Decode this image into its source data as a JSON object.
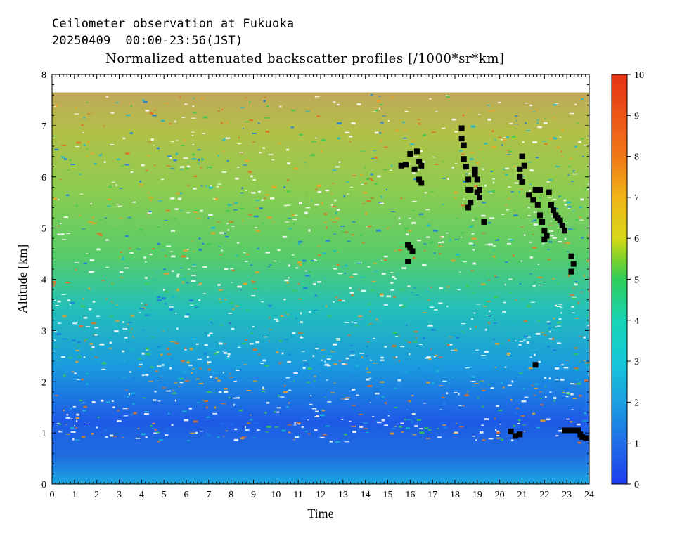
{
  "header": {
    "line1": "Ceilometer observation at Fukuoka",
    "line2": "20250409  00:00-23:56(JST)",
    "line3": "Normalized attenuated backscatter profiles [/1000*sr*km]"
  },
  "chart_data": {
    "type": "heatmap",
    "title": "Normalized attenuated backscatter profiles [/1000*sr*km]",
    "xlabel": "Time",
    "ylabel": "Altitude [km]",
    "xlim": [
      0,
      24
    ],
    "ylim": [
      0,
      8
    ],
    "x_ticks": [
      "0",
      "1",
      "2",
      "3",
      "4",
      "5",
      "6",
      "7",
      "8",
      "9",
      "10",
      "11",
      "12",
      "13",
      "14",
      "15",
      "16",
      "17",
      "18",
      "19",
      "20",
      "21",
      "22",
      "23",
      "24"
    ],
    "y_ticks": [
      "0",
      "1",
      "2",
      "3",
      "4",
      "5",
      "6",
      "7",
      "8"
    ],
    "data_top_altitude_km": 7.65,
    "colorbar": {
      "range": [
        0,
        10
      ],
      "ticks": [
        "0",
        "1",
        "2",
        "3",
        "4",
        "5",
        "6",
        "7",
        "8",
        "9",
        "10"
      ],
      "colors": [
        "#1e3cf0",
        "#1f6ee6",
        "#1aa0e0",
        "#16c8d8",
        "#18d4b4",
        "#2ecc5a",
        "#7fd42a",
        "#d8d818",
        "#f0b418",
        "#f07818",
        "#e63214"
      ]
    },
    "cloud_base_points": [
      [
        15.6,
        6.22
      ],
      [
        15.8,
        6.24
      ],
      [
        16.0,
        6.45
      ],
      [
        16.3,
        6.5
      ],
      [
        16.2,
        6.15
      ],
      [
        16.4,
        6.3
      ],
      [
        16.5,
        6.22
      ],
      [
        16.4,
        5.95
      ],
      [
        16.5,
        5.88
      ],
      [
        15.9,
        4.67
      ],
      [
        16.0,
        4.62
      ],
      [
        16.1,
        4.55
      ],
      [
        15.9,
        4.35
      ],
      [
        18.3,
        6.95
      ],
      [
        18.3,
        6.75
      ],
      [
        18.4,
        6.62
      ],
      [
        18.4,
        6.35
      ],
      [
        18.5,
        6.2
      ],
      [
        18.6,
        5.95
      ],
      [
        18.6,
        5.75
      ],
      [
        18.7,
        5.75
      ],
      [
        18.7,
        5.5
      ],
      [
        18.6,
        5.4
      ],
      [
        18.9,
        6.15
      ],
      [
        18.9,
        6.05
      ],
      [
        19.0,
        5.95
      ],
      [
        19.1,
        5.75
      ],
      [
        19.0,
        5.7
      ],
      [
        19.1,
        5.6
      ],
      [
        19.3,
        5.12
      ],
      [
        20.9,
        6.15
      ],
      [
        21.0,
        6.4
      ],
      [
        21.1,
        6.22
      ],
      [
        20.9,
        6.0
      ],
      [
        21.0,
        5.9
      ],
      [
        21.3,
        5.65
      ],
      [
        21.5,
        5.55
      ],
      [
        21.6,
        5.75
      ],
      [
        21.8,
        5.75
      ],
      [
        21.7,
        5.45
      ],
      [
        21.8,
        5.25
      ],
      [
        21.9,
        5.12
      ],
      [
        22.0,
        4.95
      ],
      [
        22.0,
        4.78
      ],
      [
        22.1,
        4.85
      ],
      [
        22.2,
        5.7
      ],
      [
        22.3,
        5.45
      ],
      [
        22.4,
        5.35
      ],
      [
        22.5,
        5.25
      ],
      [
        22.6,
        5.2
      ],
      [
        22.7,
        5.15
      ],
      [
        22.8,
        5.05
      ],
      [
        22.9,
        4.95
      ],
      [
        23.2,
        4.45
      ],
      [
        23.3,
        4.3
      ],
      [
        23.2,
        4.15
      ],
      [
        21.6,
        2.33
      ],
      [
        20.5,
        1.03
      ],
      [
        20.7,
        0.94
      ],
      [
        20.9,
        0.97
      ],
      [
        22.9,
        1.05
      ],
      [
        23.1,
        1.05
      ],
      [
        23.3,
        1.05
      ],
      [
        23.5,
        1.05
      ],
      [
        23.6,
        0.97
      ],
      [
        23.7,
        0.92
      ],
      [
        23.85,
        0.9
      ]
    ]
  }
}
